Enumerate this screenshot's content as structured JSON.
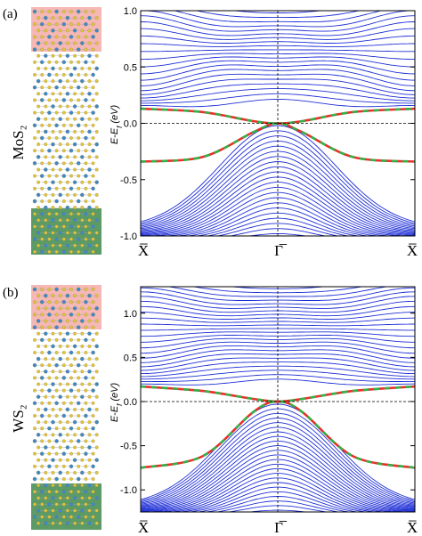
{
  "colors": {
    "bands": "#1f2fd6",
    "edge_red": "#e8312a",
    "edge_green": "#31b24a",
    "axis": "#000000",
    "top_region": "#f5b8b4",
    "bottom_region": "#5c9a66",
    "atom_sulfur": "#e2c43a",
    "atom_metal": "#3f88c4"
  },
  "chart_data": [
    {
      "type": "line",
      "panel_label": "(a)",
      "material_label": "MoS₂",
      "ylabel": "E-E",
      "ylabel_sub": "f",
      "ylabel_unit": "(eV)",
      "xlabels": [
        "X̅",
        "Γ̅",
        "X̅"
      ],
      "x": [
        -1,
        0,
        1
      ],
      "ylim": [
        -1.0,
        1.0
      ],
      "yticks": [
        1.0,
        0.5,
        0.0,
        -0.5,
        -1.0
      ],
      "ytick_labels": [
        "1.0",
        "0.5",
        "0.0",
        "-0.5",
        "-1.0"
      ],
      "fermi_level": 0.0,
      "edge_states": [
        {
          "color": "red-green dashed",
          "points": [
            [
              -1,
              0.13
            ],
            [
              -0.55,
              0.1
            ],
            [
              -0.18,
              0.02
            ],
            [
              0,
              0.0
            ],
            [
              0.18,
              0.02
            ],
            [
              0.55,
              0.1
            ],
            [
              1,
              0.13
            ]
          ]
        },
        {
          "color": "red-green dashed",
          "points": [
            [
              -1,
              -0.34
            ],
            [
              -0.55,
              -0.3
            ],
            [
              -0.18,
              -0.08
            ],
            [
              0,
              0.0
            ],
            [
              0.18,
              -0.08
            ],
            [
              0.55,
              -0.3
            ],
            [
              1,
              -0.34
            ]
          ]
        }
      ],
      "conduction_bands": {
        "count": 22,
        "range": [
          0.14,
          1.0
        ]
      },
      "valence_bands": {
        "count": 22,
        "range": [
          -1.0,
          -0.02
        ]
      }
    },
    {
      "type": "line",
      "panel_label": "(b)",
      "material_label": "WS₂",
      "ylabel": "E-E",
      "ylabel_sub": "f",
      "ylabel_unit": "(eV)",
      "xlabels": [
        "X̅",
        "Γ̅",
        "X̅"
      ],
      "x": [
        -1,
        0,
        1
      ],
      "ylim": [
        -1.25,
        1.3
      ],
      "yticks": [
        1.0,
        0.5,
        0.0,
        -0.5,
        -1.0
      ],
      "ytick_labels": [
        "1.0",
        "0.5",
        "0.0",
        "-0.5",
        "-1.0"
      ],
      "fermi_level": 0.0,
      "edge_states": [
        {
          "color": "red-green dashed",
          "points": [
            [
              -1,
              0.17
            ],
            [
              -0.55,
              0.12
            ],
            [
              -0.18,
              0.03
            ],
            [
              0,
              0.0
            ],
            [
              0.18,
              0.03
            ],
            [
              0.55,
              0.12
            ],
            [
              1,
              0.17
            ]
          ]
        },
        {
          "color": "red-green dashed",
          "points": [
            [
              -1,
              -0.75
            ],
            [
              -0.55,
              -0.62
            ],
            [
              -0.18,
              -0.12
            ],
            [
              0,
              0.0
            ],
            [
              0.18,
              -0.12
            ],
            [
              0.55,
              -0.62
            ],
            [
              1,
              -0.75
            ]
          ]
        }
      ],
      "conduction_bands": {
        "count": 26,
        "range": [
          0.18,
          1.3
        ]
      },
      "valence_bands": {
        "count": 24,
        "range": [
          -1.25,
          -0.03
        ]
      }
    }
  ]
}
